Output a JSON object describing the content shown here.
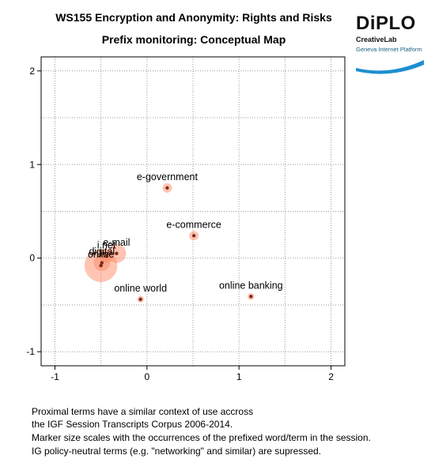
{
  "chart_data": {
    "type": "scatter",
    "title": "WS155 Encryption and Anonymity: Rights and Risks",
    "subtitle": "Prefix monitoring: Conceptual Map",
    "xlabel": "",
    "ylabel": "",
    "xlim": [
      -1.15,
      2.15
    ],
    "ylim": [
      -1.15,
      2.15
    ],
    "xticks": [
      -1,
      0,
      1,
      2
    ],
    "yticks": [
      -1,
      0,
      1,
      2
    ],
    "grid": true,
    "points": [
      {
        "label": "e-government",
        "x": 0.22,
        "y": 0.75,
        "size": 1
      },
      {
        "label": "e-commerce",
        "x": 0.51,
        "y": 0.24,
        "size": 1
      },
      {
        "label": "e-mail",
        "x": -0.33,
        "y": 0.05,
        "size": 4
      },
      {
        "label": "i.net",
        "x": -0.44,
        "y": 0.02,
        "size": 2
      },
      {
        "label": "digital",
        "x": -0.49,
        "y": -0.05,
        "size": 3
      },
      {
        "label": "online",
        "x": -0.5,
        "y": -0.08,
        "size": 12
      },
      {
        "label": "online world",
        "x": -0.07,
        "y": -0.44,
        "size": 0.5
      },
      {
        "label": "online banking",
        "x": 1.13,
        "y": -0.41,
        "size": 0.5
      }
    ]
  },
  "logo": {
    "name": "DiPLO",
    "line1": "CreativeLab",
    "line2": "Geneva Internet Platform"
  },
  "notes": [
    "Proximal terms have a similar context of use accross",
    "the IGF Session Transcripts Corpus 2006-2014.",
    "Marker size scales with the occurrences of the prefixed word/term in the session.",
    "IG policy-neutral terms (e.g. \"networking\" and similar) are supressed."
  ]
}
